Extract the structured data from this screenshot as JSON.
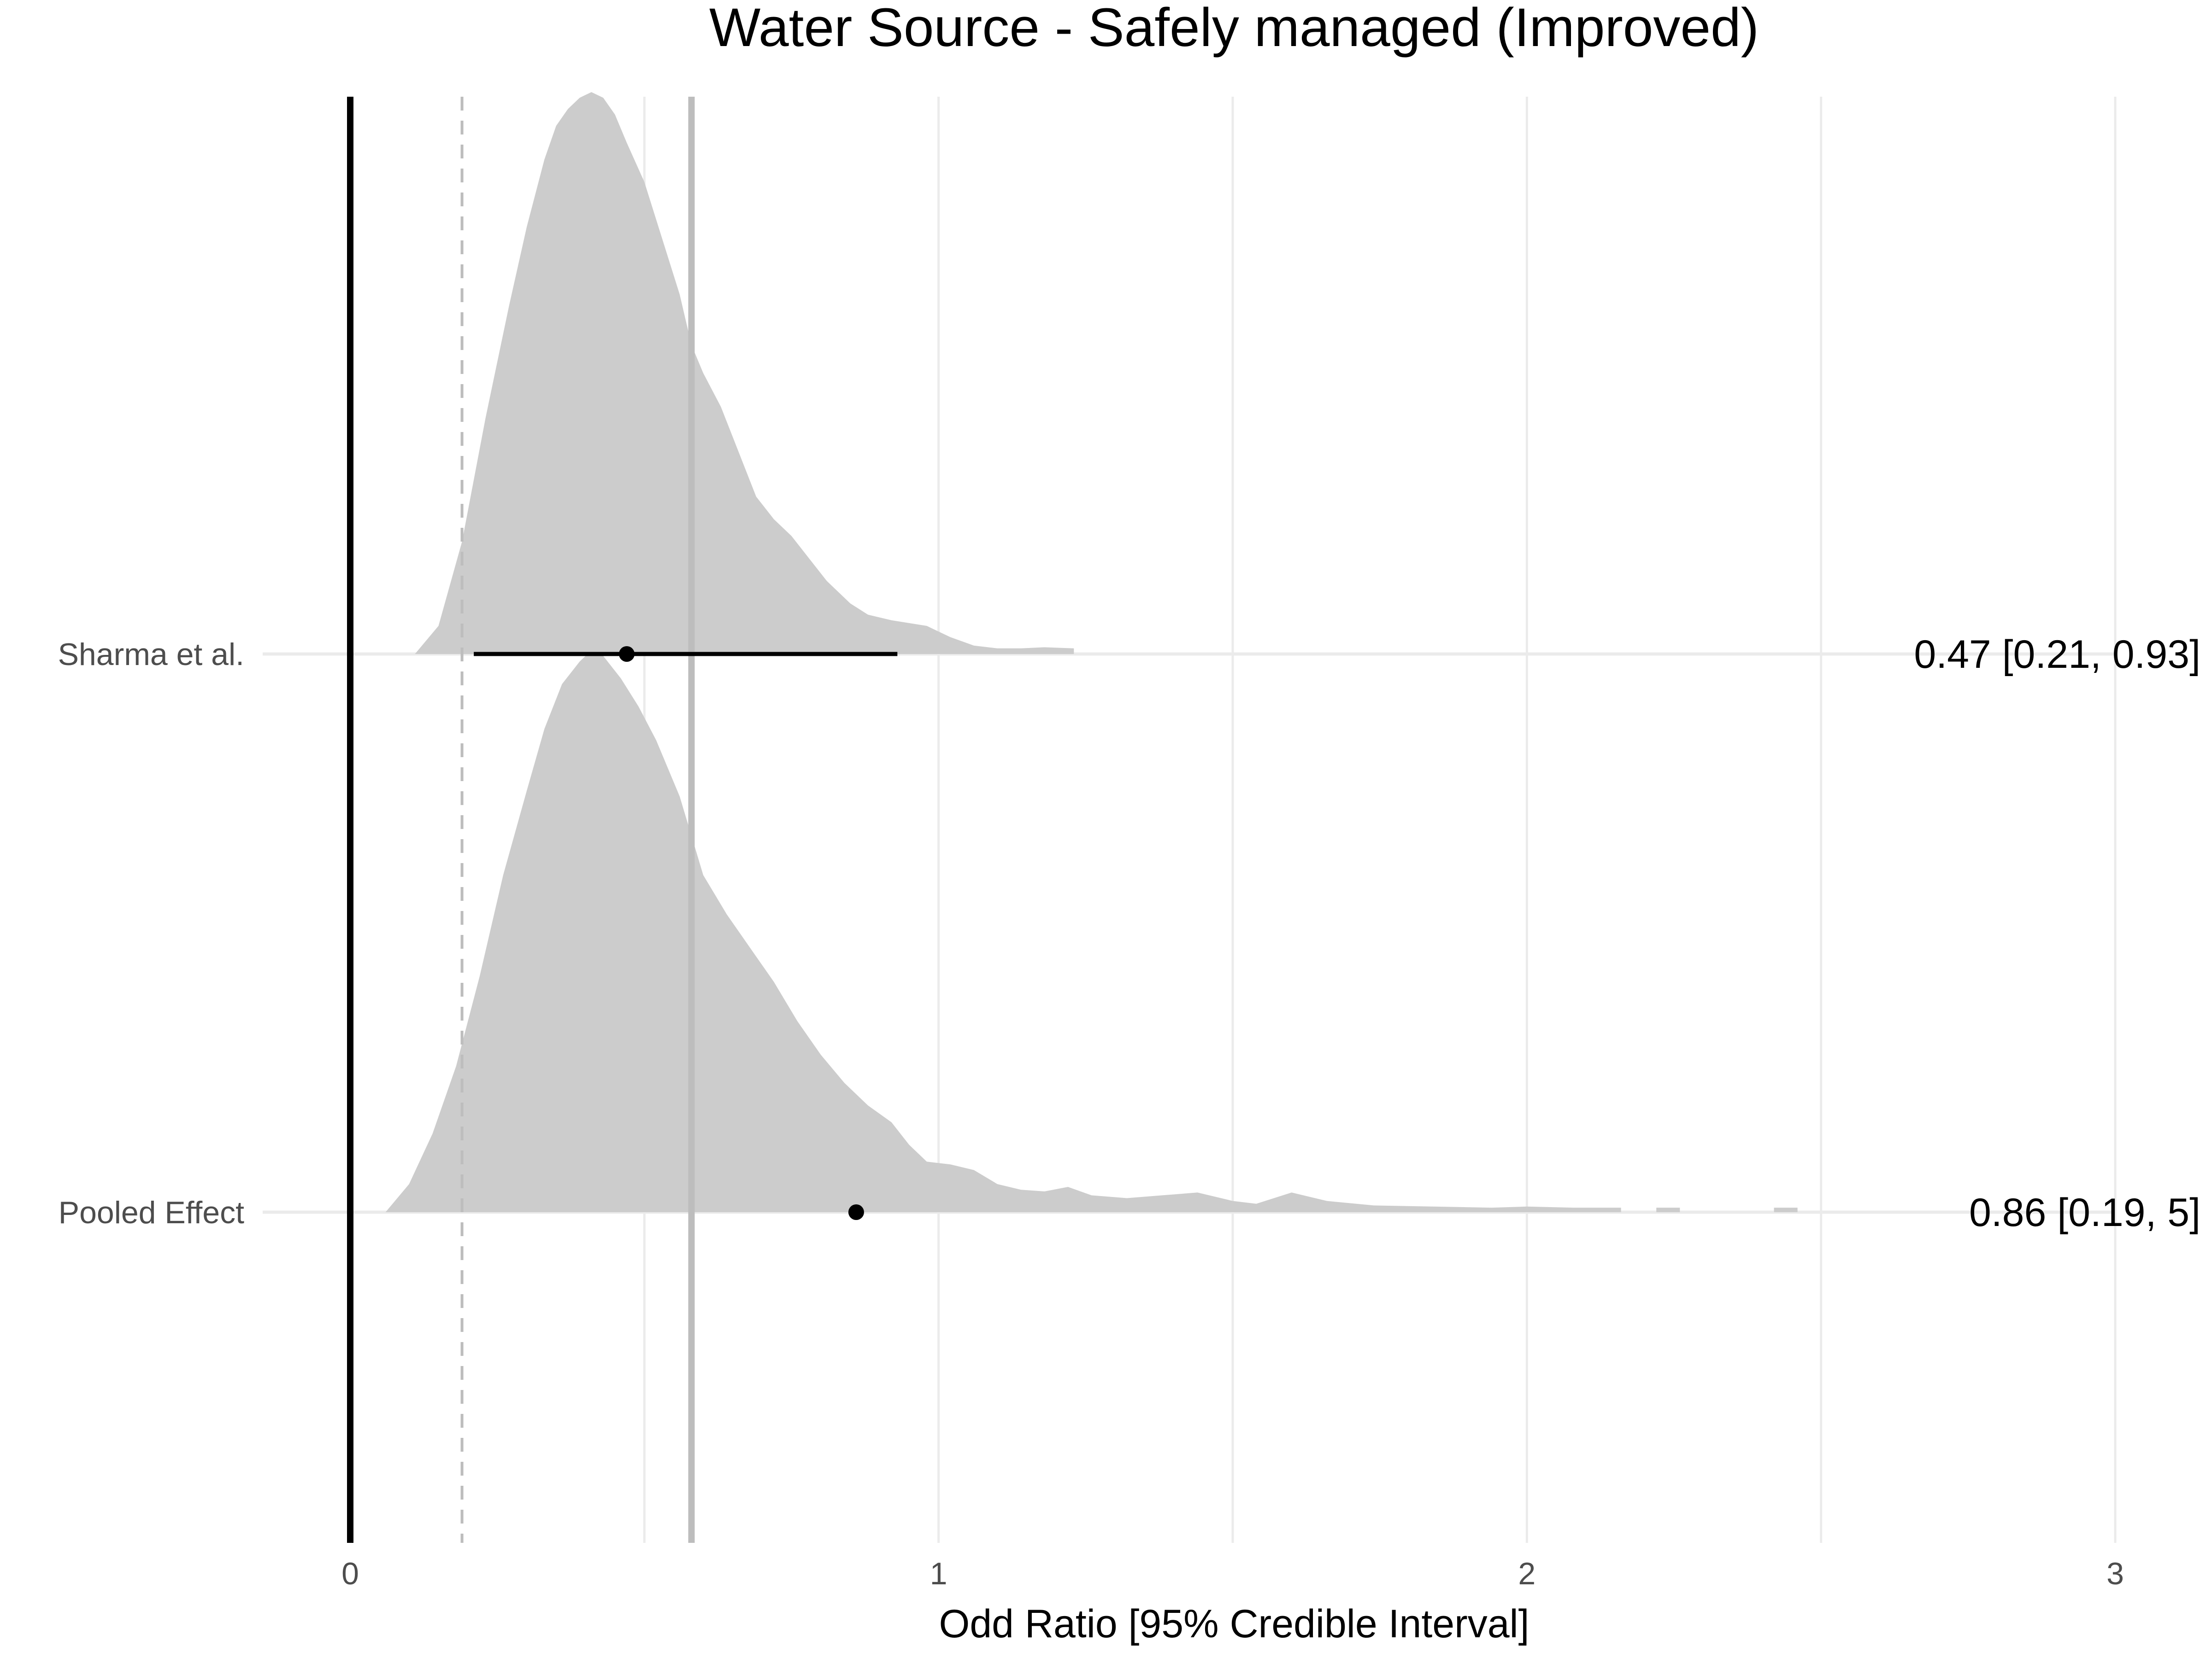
{
  "chart_data": {
    "type": "density-forest",
    "title": "Water Source - Safely managed (Improved)",
    "xlabel": "Odd Ratio [95% Credible Interval]",
    "ylabel": "",
    "xlim": [
      0,
      3
    ],
    "xticks": [
      "0",
      "1",
      "2",
      "3"
    ],
    "grid": true,
    "null_line": 0,
    "pooled_mean_line": 0.58,
    "pooled_lower_line": 0.19,
    "colors": {
      "density": "#cccccc",
      "interval": "#000000",
      "grid": "#ebebeb",
      "ref": "#bdbdbd"
    },
    "rows": [
      {
        "label": "Sharma et al.",
        "estimate": 0.47,
        "lower": 0.21,
        "upper": 0.93,
        "estimate_text": "0.47 [0.21, 0.93]",
        "show_interval": true,
        "density": [
          [
            0.11,
            0.0
          ],
          [
            0.15,
            0.05
          ],
          [
            0.19,
            0.2
          ],
          [
            0.23,
            0.42
          ],
          [
            0.27,
            0.62
          ],
          [
            0.3,
            0.76
          ],
          [
            0.33,
            0.88
          ],
          [
            0.35,
            0.94
          ],
          [
            0.37,
            0.97
          ],
          [
            0.39,
            0.99
          ],
          [
            0.41,
            1.0
          ],
          [
            0.43,
            0.99
          ],
          [
            0.45,
            0.96
          ],
          [
            0.47,
            0.91
          ],
          [
            0.5,
            0.84
          ],
          [
            0.53,
            0.74
          ],
          [
            0.56,
            0.64
          ],
          [
            0.58,
            0.55
          ],
          [
            0.6,
            0.5
          ],
          [
            0.63,
            0.44
          ],
          [
            0.66,
            0.36
          ],
          [
            0.69,
            0.28
          ],
          [
            0.72,
            0.24
          ],
          [
            0.75,
            0.21
          ],
          [
            0.78,
            0.17
          ],
          [
            0.81,
            0.13
          ],
          [
            0.85,
            0.09
          ],
          [
            0.88,
            0.07
          ],
          [
            0.92,
            0.06
          ],
          [
            0.95,
            0.055
          ],
          [
            0.98,
            0.05
          ],
          [
            1.02,
            0.03
          ],
          [
            1.06,
            0.015
          ],
          [
            1.1,
            0.01
          ],
          [
            1.14,
            0.01
          ],
          [
            1.18,
            0.012
          ],
          [
            1.23,
            0.01
          ],
          [
            1.23,
            0.0
          ]
        ]
      },
      {
        "label": "Pooled Effect",
        "estimate": 0.86,
        "lower": 0.19,
        "upper": 5,
        "estimate_text": "0.86 [0.19, 5]",
        "show_interval": false,
        "density": [
          [
            0.06,
            0.0
          ],
          [
            0.1,
            0.05
          ],
          [
            0.14,
            0.14
          ],
          [
            0.18,
            0.26
          ],
          [
            0.22,
            0.42
          ],
          [
            0.26,
            0.6
          ],
          [
            0.3,
            0.75
          ],
          [
            0.33,
            0.86
          ],
          [
            0.36,
            0.94
          ],
          [
            0.39,
            0.98
          ],
          [
            0.41,
            1.0
          ],
          [
            0.43,
            0.99
          ],
          [
            0.46,
            0.95
          ],
          [
            0.49,
            0.9
          ],
          [
            0.52,
            0.84
          ],
          [
            0.56,
            0.74
          ],
          [
            0.6,
            0.6
          ],
          [
            0.64,
            0.53
          ],
          [
            0.68,
            0.47
          ],
          [
            0.72,
            0.41
          ],
          [
            0.76,
            0.34
          ],
          [
            0.8,
            0.28
          ],
          [
            0.84,
            0.23
          ],
          [
            0.88,
            0.19
          ],
          [
            0.92,
            0.16
          ],
          [
            0.95,
            0.12
          ],
          [
            0.98,
            0.09
          ],
          [
            1.02,
            0.085
          ],
          [
            1.06,
            0.075
          ],
          [
            1.1,
            0.05
          ],
          [
            1.14,
            0.04
          ],
          [
            1.18,
            0.037
          ],
          [
            1.22,
            0.045
          ],
          [
            1.26,
            0.03
          ],
          [
            1.32,
            0.025
          ],
          [
            1.38,
            0.03
          ],
          [
            1.44,
            0.035
          ],
          [
            1.5,
            0.02
          ],
          [
            1.54,
            0.015
          ],
          [
            1.6,
            0.035
          ],
          [
            1.66,
            0.02
          ],
          [
            1.74,
            0.012
          ],
          [
            1.84,
            0.01
          ],
          [
            1.94,
            0.008
          ],
          [
            2.0,
            0.01
          ],
          [
            2.08,
            0.008
          ],
          [
            2.16,
            0.008
          ],
          [
            2.16,
            0.0
          ],
          [
            2.22,
            0.0
          ],
          [
            2.22,
            0.008
          ],
          [
            2.26,
            0.008
          ],
          [
            2.26,
            0.0
          ],
          [
            2.42,
            0.0
          ],
          [
            2.42,
            0.008
          ],
          [
            2.46,
            0.008
          ],
          [
            2.46,
            0.0
          ]
        ]
      }
    ]
  }
}
